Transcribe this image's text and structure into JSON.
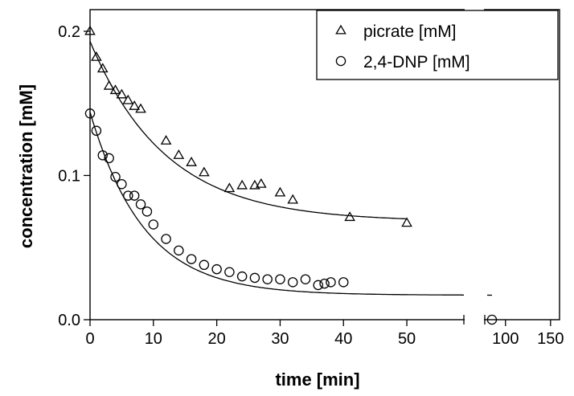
{
  "chart_data": {
    "type": "scatter",
    "title": "",
    "xlabel": "time [min]",
    "ylabel": "concentration [mM]",
    "x_ticks": [
      "0",
      "10",
      "20",
      "30",
      "40",
      "50"
    ],
    "x_ticks_right": [
      "100",
      "150"
    ],
    "y_ticks": [
      "0.0",
      "0.1",
      "0.2"
    ],
    "xlim": [
      0,
      59
    ],
    "xlim_right": [
      77,
      160
    ],
    "ylim": [
      0,
      0.215
    ],
    "axis_break": true,
    "grid": false,
    "legend_position": "top-right",
    "series": [
      {
        "name": "picrate [mM]",
        "marker": "triangle",
        "points": [
          [
            0,
            0.2
          ],
          [
            1,
            0.182
          ],
          [
            2,
            0.174
          ],
          [
            3,
            0.162
          ],
          [
            4,
            0.159
          ],
          [
            5,
            0.156
          ],
          [
            6,
            0.152
          ],
          [
            7,
            0.148
          ],
          [
            8,
            0.146
          ],
          [
            12,
            0.124
          ],
          [
            14,
            0.114
          ],
          [
            16,
            0.109
          ],
          [
            18,
            0.102
          ],
          [
            22,
            0.091
          ],
          [
            24,
            0.093
          ],
          [
            26,
            0.093
          ],
          [
            27,
            0.094
          ],
          [
            30,
            0.088
          ],
          [
            32,
            0.083
          ],
          [
            41,
            0.071
          ],
          [
            50,
            0.067
          ]
        ],
        "fit": {
          "model": "exponential",
          "plateau": 0.068,
          "amplitude": 0.125,
          "tau": 12
        }
      },
      {
        "name": "2,4-DNP [mM]",
        "marker": "circle",
        "points": [
          [
            0,
            0.143
          ],
          [
            1,
            0.131
          ],
          [
            2,
            0.114
          ],
          [
            3,
            0.112
          ],
          [
            4,
            0.099
          ],
          [
            5,
            0.094
          ],
          [
            6,
            0.086
          ],
          [
            7,
            0.086
          ],
          [
            8,
            0.08
          ],
          [
            9,
            0.075
          ],
          [
            10,
            0.066
          ],
          [
            12,
            0.056
          ],
          [
            14,
            0.048
          ],
          [
            16,
            0.042
          ],
          [
            18,
            0.038
          ],
          [
            20,
            0.035
          ],
          [
            22,
            0.033
          ],
          [
            24,
            0.03
          ],
          [
            26,
            0.029
          ],
          [
            28,
            0.028
          ],
          [
            30,
            0.028
          ],
          [
            32,
            0.026
          ],
          [
            34,
            0.028
          ],
          [
            36,
            0.024
          ],
          [
            37,
            0.025
          ],
          [
            38,
            0.026
          ],
          [
            40,
            0.026
          ],
          [
            85,
            0.0
          ]
        ],
        "fit": {
          "model": "exponential",
          "plateau": 0.017,
          "amplitude": 0.127,
          "tau": 8.5
        }
      }
    ]
  }
}
